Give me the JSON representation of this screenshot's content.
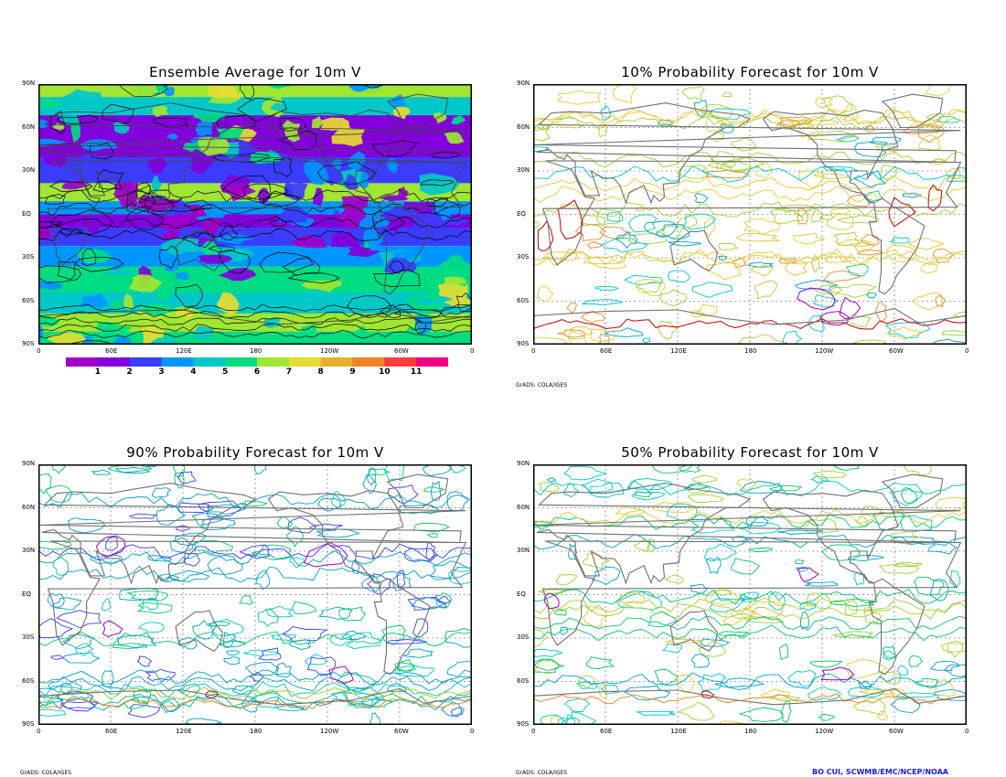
{
  "panels": [
    {
      "title": "Ensemble Average for 10m V"
    },
    {
      "title": "10% Probability Forecast for 10m V"
    },
    {
      "title": "90% Probability Forecast for 10m V"
    },
    {
      "title": "50% Probability Forecast for 10m V"
    }
  ],
  "lat_labels": [
    "90N",
    "60N",
    "30N",
    "EQ",
    "30S",
    "60S",
    "90S"
  ],
  "lon_labels": [
    "0",
    "60E",
    "120E",
    "180",
    "120W",
    "60W",
    "0"
  ],
  "colorbar": {
    "labels": [
      "1",
      "2",
      "3",
      "4",
      "5",
      "6",
      "7",
      "8",
      "9",
      "10",
      "11"
    ],
    "colors": [
      "#a000c8",
      "#8200dc",
      "#3c3cff",
      "#0096ff",
      "#00c8c8",
      "#00dc82",
      "#a0e632",
      "#e6dc32",
      "#e6af2d",
      "#f08228",
      "#fa3c3c",
      "#f00082"
    ]
  },
  "credit": "GrADS: COLA/IGES",
  "author": "BO CUI, SCWMB/EMC/NCEP/NOAA",
  "contour_colors": [
    "#a000c8",
    "#3c3cff",
    "#00a0c8",
    "#00c8c8",
    "#00c864",
    "#a0d232",
    "#e6c832",
    "#e68c28",
    "#e64628",
    "#c80000",
    "#808080"
  ]
}
